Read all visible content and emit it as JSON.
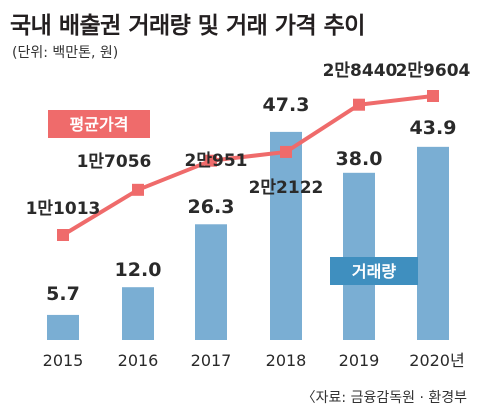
{
  "title": "국내 배출권 거래량 및 거래 가격 추이",
  "unit": "(단위: 백만톤, 원)",
  "source": "〈자료: 금융감독원 · 환경부",
  "colors": {
    "bar": "#7aaed3",
    "line": "#ef6b6b",
    "legend_bar_bg": "#3f8fbf",
    "legend_line_bg": "#ef6b6b"
  },
  "chart_data": {
    "type": "bar+line",
    "categories": [
      "2015",
      "2016",
      "2017",
      "2018",
      "2019",
      "2020년"
    ],
    "series": [
      {
        "name": "거래량",
        "type": "bar",
        "values": [
          5.7,
          12.0,
          26.3,
          47.3,
          38.0,
          43.9
        ],
        "labels": [
          "5.7",
          "12.0",
          "26.3",
          "47.3",
          "38.0",
          "43.9"
        ]
      },
      {
        "name": "평균가격",
        "type": "line",
        "values": [
          11013,
          17056,
          20951,
          22122,
          28440,
          29604
        ],
        "labels": [
          "1만1013",
          "1만7056",
          "2만951",
          "2만2122",
          "2만8440",
          "2만9604"
        ]
      }
    ],
    "grid": false
  }
}
